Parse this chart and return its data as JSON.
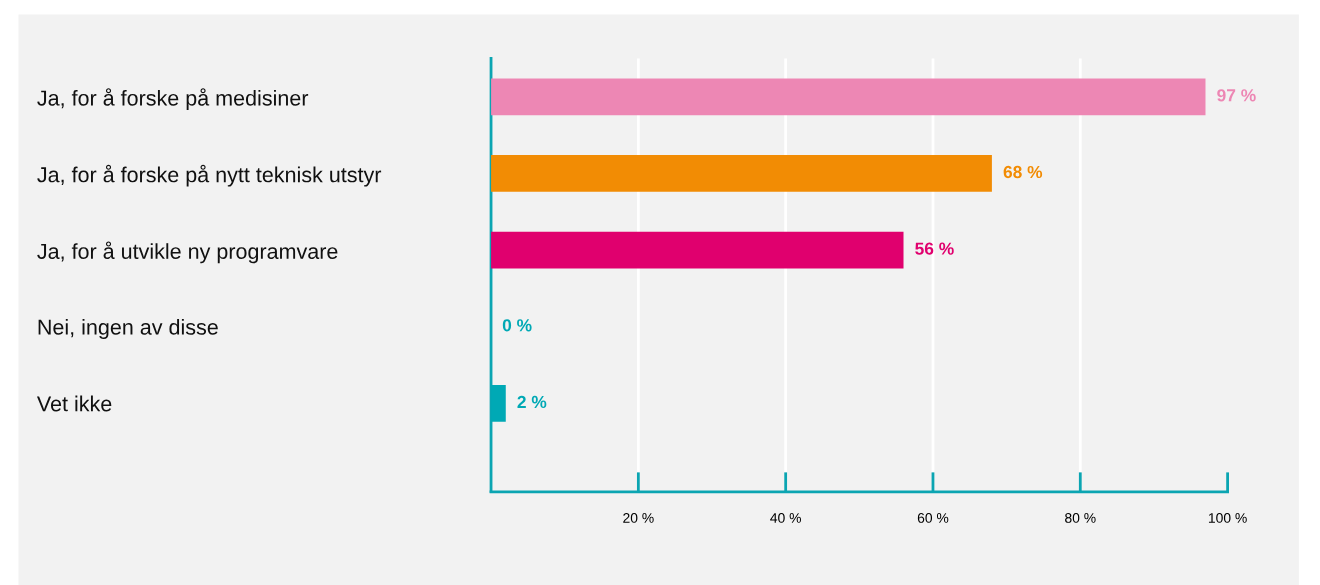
{
  "chart_data": {
    "type": "bar",
    "orientation": "horizontal",
    "categories": [
      "Ja, for å forske på medisiner",
      "Ja, for å forske på nytt teknisk utstyr",
      "Ja, for å utvikle ny programvare",
      "Nei, ingen av disse",
      "Vet ikke"
    ],
    "values": [
      97,
      68,
      56,
      0,
      2
    ],
    "colors": [
      "#ed87b4",
      "#f28c04",
      "#e0006e",
      "#00a9b5",
      "#00a9b5"
    ],
    "value_labels": [
      "97 %",
      "68 %",
      "56 %",
      "0 %",
      "2 %"
    ],
    "xlim": [
      0,
      100
    ],
    "xticks": [
      {
        "value": 20,
        "label": "20 %"
      },
      {
        "value": 40,
        "label": "40 %"
      },
      {
        "value": 60,
        "label": "60 %"
      },
      {
        "value": 80,
        "label": "80 %"
      },
      {
        "value": 100,
        "label": "100 %"
      }
    ],
    "grid": "x"
  }
}
